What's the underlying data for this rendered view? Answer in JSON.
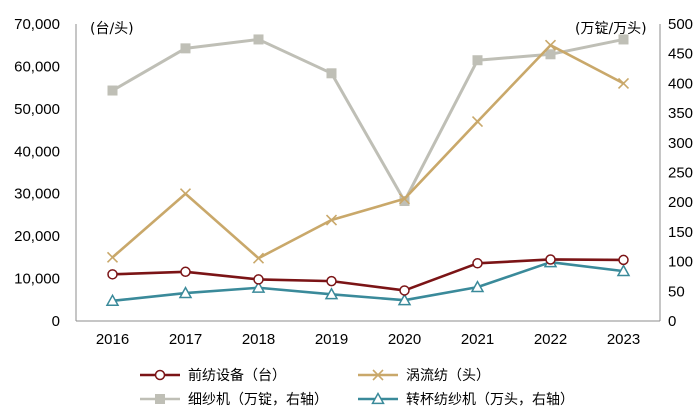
{
  "chart_data": {
    "type": "line",
    "categories": [
      "2016",
      "2017",
      "2018",
      "2019",
      "2020",
      "2021",
      "2022",
      "2023"
    ],
    "left_axis": {
      "unit_label": "(台/头)",
      "ylim": [
        0,
        70000
      ],
      "ticks": [
        "0",
        "10,000",
        "20,000",
        "30,000",
        "40,000",
        "50,000",
        "60,000",
        "70,000"
      ]
    },
    "right_axis": {
      "unit_label": "(万锭/万头)",
      "ylim": [
        0,
        500
      ],
      "ticks": [
        "0",
        "50",
        "100",
        "150",
        "200",
        "250",
        "300",
        "350",
        "400",
        "450",
        "500"
      ]
    },
    "grid": false,
    "legend_position": "bottom",
    "series": [
      {
        "name": "前纺设备（台）",
        "axis": "left",
        "color": "#7b1416",
        "marker": "circle-open",
        "values": [
          11000,
          11600,
          9800,
          9400,
          7200,
          13600,
          14500,
          14400
        ]
      },
      {
        "name": "涡流纺（头）",
        "axis": "left",
        "color": "#c9a86a",
        "marker": "x",
        "values": [
          15000,
          30000,
          14800,
          23800,
          28800,
          47000,
          65000,
          56000
        ]
      },
      {
        "name": "细纱机（万锭，右轴）",
        "axis": "right",
        "color": "#bfbfb6",
        "marker": "square",
        "values": [
          388,
          459,
          474,
          417,
          202,
          439,
          449,
          474
        ]
      },
      {
        "name": "转杯纺纱机（万头，右轴）",
        "axis": "right",
        "color": "#3a8a9a",
        "marker": "triangle-open",
        "values": [
          34,
          47,
          56,
          45,
          35,
          57,
          99,
          84
        ]
      }
    ]
  }
}
